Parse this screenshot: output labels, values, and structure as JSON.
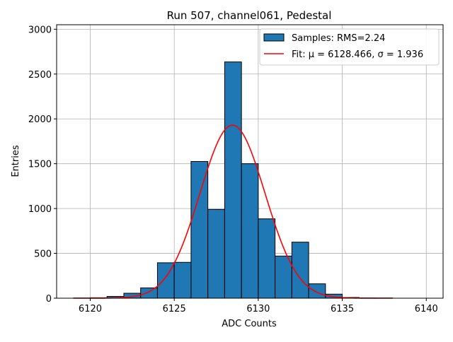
{
  "chart_data": {
    "type": "bar",
    "title": "Run 507, channel061, Pedestal",
    "xlabel": "ADC Counts",
    "ylabel": "Entries",
    "xlim": [
      6118.0,
      6141.0
    ],
    "ylim": [
      0,
      3050
    ],
    "xticks": [
      6120,
      6125,
      6130,
      6135,
      6140
    ],
    "yticks": [
      0,
      500,
      1000,
      1500,
      2000,
      2500,
      3000
    ],
    "grid": true,
    "legend_position": "top-right",
    "histogram": {
      "name": "Samples: RMS=2.24",
      "color": "#1f77b4",
      "edgecolor": "#000000",
      "bins": [
        {
          "x0": 6119,
          "x1": 6120,
          "count": 2
        },
        {
          "x0": 6120,
          "x1": 6121,
          "count": 5
        },
        {
          "x0": 6121,
          "x1": 6122,
          "count": 20
        },
        {
          "x0": 6122,
          "x1": 6123,
          "count": 55
        },
        {
          "x0": 6123,
          "x1": 6124,
          "count": 115
        },
        {
          "x0": 6124,
          "x1": 6125,
          "count": 395
        },
        {
          "x0": 6125,
          "x1": 6126,
          "count": 400
        },
        {
          "x0": 6126,
          "x1": 6127,
          "count": 1525
        },
        {
          "x0": 6127,
          "x1": 6128,
          "count": 990
        },
        {
          "x0": 6128,
          "x1": 6129,
          "count": 2635
        },
        {
          "x0": 6129,
          "x1": 6130,
          "count": 1500
        },
        {
          "x0": 6130,
          "x1": 6131,
          "count": 885
        },
        {
          "x0": 6131,
          "x1": 6132,
          "count": 470
        },
        {
          "x0": 6132,
          "x1": 6133,
          "count": 625
        },
        {
          "x0": 6133,
          "x1": 6134,
          "count": 160
        },
        {
          "x0": 6134,
          "x1": 6135,
          "count": 45
        },
        {
          "x0": 6135,
          "x1": 6136,
          "count": 8
        },
        {
          "x0": 6136,
          "x1": 6137,
          "count": 3
        },
        {
          "x0": 6137,
          "x1": 6138,
          "count": 2
        }
      ]
    },
    "fit": {
      "name": "Fit: μ = 6128.466, σ = 1.936",
      "color": "#ff0000",
      "mu": 6128.466,
      "sigma": 1.936,
      "amplitude": 1930,
      "x_range": [
        6119,
        6138
      ]
    }
  }
}
